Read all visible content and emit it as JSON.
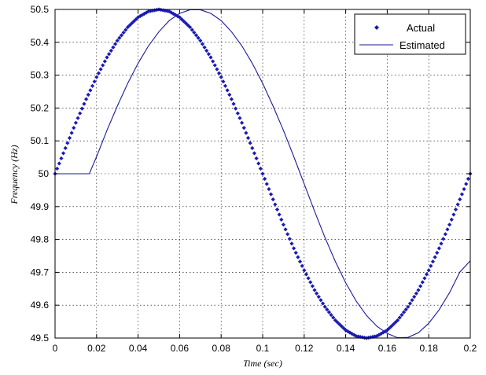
{
  "chart_data": {
    "type": "line",
    "title": "",
    "xlabel": "Time (sec)",
    "ylabel": "Frequency (Hz)",
    "xlim": [
      0,
      0.2
    ],
    "ylim": [
      49.5,
      50.5
    ],
    "xticks": [
      "0",
      "0.02",
      "0.04",
      "0.06",
      "0.08",
      "0.1",
      "0.12",
      "0.14",
      "0.16",
      "0.18",
      "0.2"
    ],
    "yticks": [
      "49.5",
      "49.6",
      "49.7",
      "49.8",
      "49.9",
      "50",
      "50.1",
      "50.2",
      "50.3",
      "50.4",
      "50.5"
    ],
    "grid": true,
    "legend_position": "top-right",
    "series": [
      {
        "name": "Actual",
        "style": "dots",
        "color": "#1a1ab4",
        "x": [
          0,
          0.005,
          0.01,
          0.015,
          0.02,
          0.025,
          0.03,
          0.035,
          0.04,
          0.045,
          0.05,
          0.055,
          0.06,
          0.065,
          0.07,
          0.075,
          0.08,
          0.085,
          0.09,
          0.095,
          0.1,
          0.105,
          0.11,
          0.115,
          0.12,
          0.125,
          0.13,
          0.135,
          0.14,
          0.145,
          0.15,
          0.155,
          0.16,
          0.165,
          0.17,
          0.175,
          0.18,
          0.185,
          0.19,
          0.195,
          0.2
        ],
        "y": [
          50.0,
          50.078,
          50.155,
          50.227,
          50.294,
          50.354,
          50.405,
          50.446,
          50.476,
          50.494,
          50.5,
          50.494,
          50.476,
          50.446,
          50.405,
          50.354,
          50.294,
          50.227,
          50.155,
          50.078,
          50.0,
          49.922,
          49.845,
          49.773,
          49.706,
          49.646,
          49.595,
          49.554,
          49.524,
          49.506,
          49.5,
          49.506,
          49.524,
          49.554,
          49.595,
          49.646,
          49.706,
          49.773,
          49.845,
          49.922,
          50.0
        ]
      },
      {
        "name": "Estimated",
        "style": "line",
        "color": "#1a1a9c",
        "x": [
          0,
          0.0165,
          0.02,
          0.025,
          0.03,
          0.035,
          0.04,
          0.045,
          0.05,
          0.055,
          0.06,
          0.065,
          0.07,
          0.075,
          0.08,
          0.085,
          0.09,
          0.095,
          0.1,
          0.105,
          0.11,
          0.115,
          0.12,
          0.125,
          0.13,
          0.135,
          0.14,
          0.145,
          0.15,
          0.155,
          0.16,
          0.165,
          0.17,
          0.175,
          0.18,
          0.185,
          0.19,
          0.195,
          0.2
        ],
        "y": [
          50.0,
          50.0,
          50.052,
          50.132,
          50.206,
          50.275,
          50.336,
          50.389,
          50.432,
          50.466,
          50.488,
          50.499,
          50.499,
          50.488,
          50.466,
          50.432,
          50.389,
          50.336,
          50.275,
          50.206,
          50.132,
          50.052,
          49.969,
          49.886,
          49.806,
          49.733,
          49.668,
          49.613,
          49.569,
          49.536,
          49.514,
          49.501,
          49.502,
          49.516,
          49.545,
          49.586,
          49.638,
          49.701,
          49.735
        ]
      }
    ]
  }
}
